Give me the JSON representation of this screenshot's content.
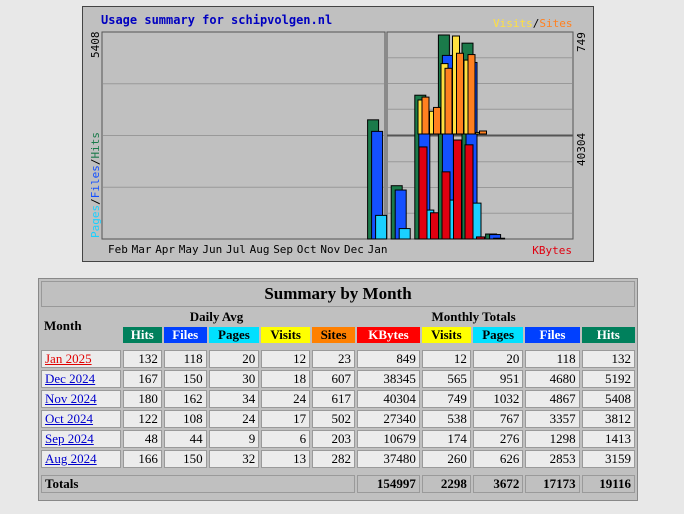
{
  "chart": {
    "title": "Usage summary for schipvolgen.nl",
    "main_scale_label": "5408",
    "visits_scale_label": "749",
    "kbytes_scale_label": "40304",
    "legend_left": [
      "Pages",
      "/",
      "Files",
      "/",
      "Hits"
    ],
    "legend_top_right": [
      "Visits",
      "/",
      "Sites"
    ],
    "legend_bottom_right": "KBytes",
    "months": [
      "Feb",
      "Mar",
      "Apr",
      "May",
      "Jun",
      "Jul",
      "Aug",
      "Sep",
      "Oct",
      "Nov",
      "Dec",
      "Jan"
    ],
    "colors": {
      "hits": "#1a7a4a",
      "files": "#1450ff",
      "pages": "#1ad0ff",
      "visits": "#ffe040",
      "sites": "#ff8020",
      "kbytes": "#e00010",
      "bg": "#c0c0c0",
      "title": "#0000c0"
    }
  },
  "chart_data": {
    "type": "bar",
    "categories": [
      "Feb",
      "Mar",
      "Apr",
      "May",
      "Jun",
      "Jul",
      "Aug",
      "Sep",
      "Oct",
      "Nov",
      "Dec",
      "Jan"
    ],
    "series": [
      {
        "name": "Hits",
        "values": [
          0,
          0,
          0,
          0,
          0,
          0,
          3159,
          1413,
          3812,
          5408,
          5192,
          132
        ]
      },
      {
        "name": "Files",
        "values": [
          0,
          0,
          0,
          0,
          0,
          0,
          2853,
          1298,
          3357,
          4867,
          4680,
          118
        ]
      },
      {
        "name": "Pages",
        "values": [
          0,
          0,
          0,
          0,
          0,
          0,
          626,
          276,
          767,
          1032,
          951,
          20
        ]
      },
      {
        "name": "Visits",
        "values": [
          0,
          0,
          0,
          0,
          0,
          0,
          260,
          174,
          538,
          749,
          565,
          12
        ]
      },
      {
        "name": "Sites",
        "values": [
          0,
          0,
          0,
          0,
          0,
          0,
          282,
          203,
          502,
          617,
          607,
          23
        ]
      },
      {
        "name": "KBytes",
        "values": [
          0,
          0,
          0,
          0,
          0,
          0,
          37480,
          10679,
          27340,
          40304,
          38345,
          849
        ]
      }
    ]
  },
  "table": {
    "title": "Summary by Month",
    "month_header": "Month",
    "daily_avg_header": "Daily Avg",
    "monthly_totals_header": "Monthly Totals",
    "daily_cols": [
      "Hits",
      "Files",
      "Pages",
      "Visits"
    ],
    "monthly_cols": [
      "Sites",
      "KBytes",
      "Visits",
      "Pages",
      "Files",
      "Hits"
    ],
    "rows": [
      {
        "month": "Jan 2025",
        "current": true,
        "vals": [
          "132",
          "118",
          "20",
          "12",
          "23",
          "849",
          "12",
          "20",
          "118",
          "132"
        ]
      },
      {
        "month": "Dec 2024",
        "current": false,
        "vals": [
          "167",
          "150",
          "30",
          "18",
          "607",
          "38345",
          "565",
          "951",
          "4680",
          "5192"
        ]
      },
      {
        "month": "Nov 2024",
        "current": false,
        "vals": [
          "180",
          "162",
          "34",
          "24",
          "617",
          "40304",
          "749",
          "1032",
          "4867",
          "5408"
        ]
      },
      {
        "month": "Oct 2024",
        "current": false,
        "vals": [
          "122",
          "108",
          "24",
          "17",
          "502",
          "27340",
          "538",
          "767",
          "3357",
          "3812"
        ]
      },
      {
        "month": "Sep 2024",
        "current": false,
        "vals": [
          "48",
          "44",
          "9",
          "6",
          "203",
          "10679",
          "174",
          "276",
          "1298",
          "1413"
        ]
      },
      {
        "month": "Aug 2024",
        "current": false,
        "vals": [
          "166",
          "150",
          "32",
          "13",
          "282",
          "37480",
          "260",
          "626",
          "2853",
          "3159"
        ]
      }
    ],
    "totals_label": "Totals",
    "totals": [
      "154997",
      "2298",
      "3672",
      "17173",
      "19116"
    ],
    "header_colors": {
      "hits": "#00805c",
      "files": "#0040ff",
      "pages": "#00e0ff",
      "visits": "#ffff00",
      "sites": "#ff8000",
      "kbytes": "#ff0000"
    }
  }
}
